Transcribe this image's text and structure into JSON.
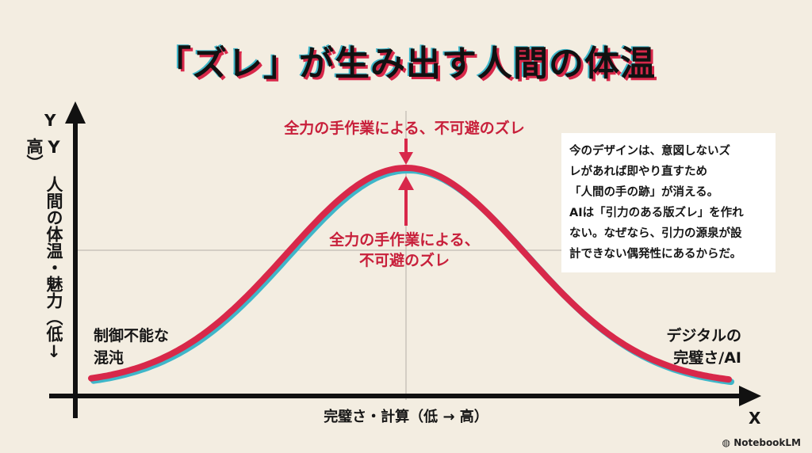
{
  "title": "「ズレ」が生み出す人間の体温",
  "axes": {
    "y_letter": "Y",
    "y_label": "Y 人間の体温・魅力（低↓高）",
    "x_label": "完璧さ・計算（低 → 高）",
    "x_letter": "X"
  },
  "annotations": {
    "peak_top": "全力の手作業による、不可避のズレ",
    "peak_mid_line1": "全力の手作業による、",
    "peak_mid_line2": "不可避のズレ",
    "left_line1": "制御不能な",
    "left_line2": "混沌",
    "right_line1": "デジタルの",
    "right_line2": "完璧さ/AI"
  },
  "note": {
    "lines": [
      "今のデザインは、意図しないズ",
      "レがあれば即やり直すため",
      "「人間の手の跡」が消える。",
      "AIは「引力のある版ズレ」を作れ",
      "ない。なぜなら、引力の源泉が設",
      "計できない偶発性にあるからだ。"
    ]
  },
  "brand": "NotebookLM",
  "colors": {
    "curve_red": "#d8284a",
    "curve_blue": "#3fb6c9",
    "accent_text": "#c8203b"
  }
}
